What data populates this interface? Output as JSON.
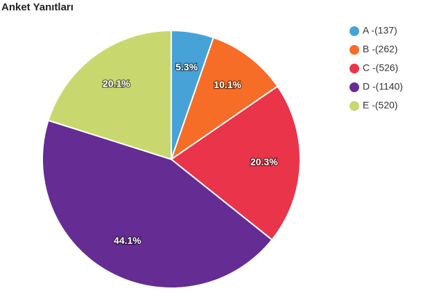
{
  "chart_data": {
    "type": "pie",
    "title": "Anket Yanıtları",
    "categories": [
      "A -(137)",
      "B -(262)",
      "C -(526)",
      "D -(1140)",
      "E -(520)"
    ],
    "values": [
      5.3,
      10.1,
      20.3,
      44.1,
      20.1
    ],
    "value_labels": [
      "5.3%",
      "10.1%",
      "20.3%",
      "44.1%",
      "20.1%"
    ],
    "colors": [
      "#47a2d7",
      "#f56d27",
      "#e9344a",
      "#652c93",
      "#c8d86e"
    ]
  }
}
